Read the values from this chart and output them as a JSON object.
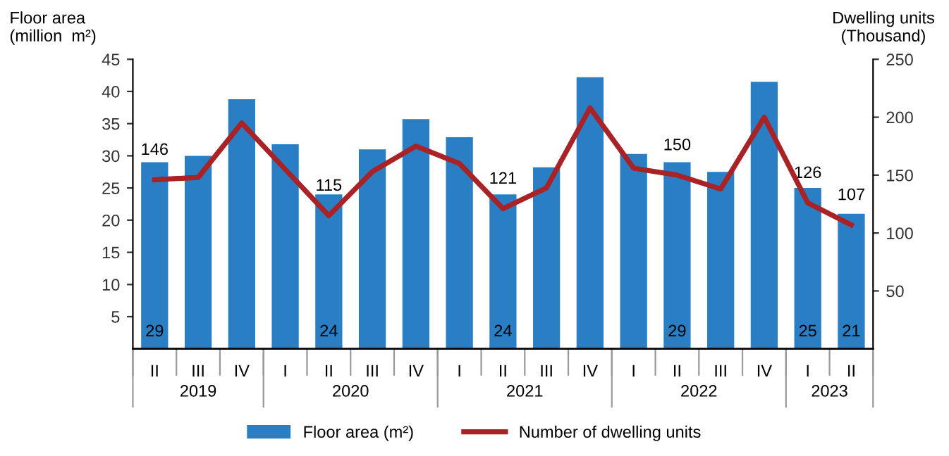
{
  "chart_data": {
    "type": "bar",
    "categories": [
      "II",
      "III",
      "IV",
      "I",
      "II",
      "III",
      "IV",
      "I",
      "II",
      "III",
      "IV",
      "I",
      "II",
      "III",
      "IV",
      "I",
      "II"
    ],
    "ylabel": "Floor area\n(million  m²)",
    "y2label": "Dwelling units\n(Thousand)",
    "series": [
      {
        "name": "Floor area (m²)",
        "color": "#2a7fc4",
        "values": [
          29,
          30,
          38.8,
          31.8,
          24,
          31,
          35.7,
          32.9,
          24,
          28.2,
          42.2,
          30.3,
          29,
          27.5,
          41.5,
          25,
          21
        ],
        "value_labels": [
          "29",
          null,
          null,
          null,
          "24",
          null,
          null,
          null,
          "24",
          null,
          null,
          null,
          "29",
          null,
          null,
          "25",
          "21"
        ]
      },
      {
        "name": "Number of dwelling units",
        "type": "line",
        "axis": "y2",
        "color": "#a82226",
        "values": [
          146,
          148,
          195,
          155,
          115,
          153,
          175,
          160,
          121,
          139,
          208,
          156,
          150,
          138,
          200,
          126,
          107
        ],
        "value_labels": [
          "146",
          null,
          null,
          null,
          "115",
          null,
          null,
          null,
          "121",
          null,
          null,
          null,
          "150",
          null,
          null,
          "126",
          "107"
        ]
      }
    ],
    "annotations": [
      "2019",
      "2020",
      "2021",
      "2022",
      "2023"
    ],
    "ylim": [
      0,
      45
    ],
    "yticks": [
      5,
      10,
      15,
      20,
      25,
      30,
      35,
      40,
      45
    ],
    "y2lim": [
      0,
      250
    ],
    "y2ticks": [
      50,
      100,
      150,
      200,
      250
    ],
    "grid": false,
    "legend": "bottom",
    "line_style": "solid",
    "marker": "none"
  }
}
